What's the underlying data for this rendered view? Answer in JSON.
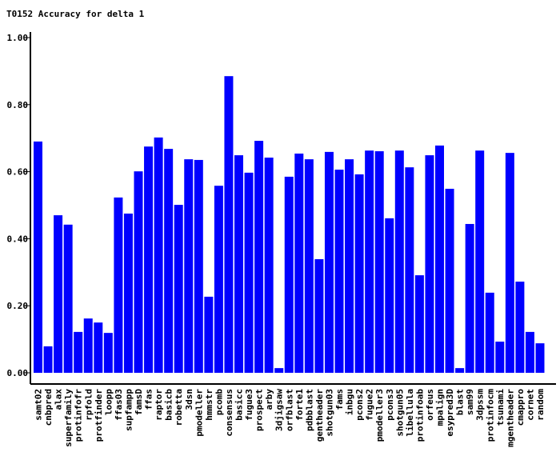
{
  "chart_data": {
    "type": "bar",
    "title": "T0152 Accuracy for delta 1",
    "categories": [
      "samt02",
      "cnbpred",
      "alax",
      "superfamily",
      "protinfofr",
      "rpfold",
      "protfinder",
      "loopp",
      "ffas03",
      "supfampp",
      "famsD",
      "ffas",
      "raptor",
      "basicb",
      "robetta",
      "3dsn",
      "pmodeller",
      "hmmstr",
      "pcomb",
      "consensus",
      "basicc",
      "fugue3",
      "prospect",
      "arby",
      "3djigsaw",
      "orfblast",
      "forte1",
      "pdbblast",
      "gentheader",
      "shotgun03",
      "fams",
      "inbgu",
      "pcons2",
      "fugue2",
      "pmodeller3",
      "pcons3",
      "shotgun05",
      "libellula",
      "protinfoab",
      "orfeus",
      "mpalign",
      "esypred3D",
      "blast",
      "sam99",
      "3dpssm",
      "protinfocm",
      "tsunami",
      "mgentheader",
      "cmappro",
      "cornet",
      "random"
    ],
    "values": [
      0.69,
      0.079,
      0.47,
      0.442,
      0.122,
      0.162,
      0.15,
      0.119,
      0.523,
      0.475,
      0.601,
      0.675,
      0.702,
      0.668,
      0.501,
      0.637,
      0.635,
      0.227,
      0.558,
      0.885,
      0.649,
      0.597,
      0.692,
      0.642,
      0.014,
      0.585,
      0.654,
      0.637,
      0.339,
      0.659,
      0.606,
      0.637,
      0.592,
      0.663,
      0.661,
      0.461,
      0.663,
      0.613,
      0.291,
      0.649,
      0.678,
      0.549,
      0.014,
      0.444,
      0.663,
      0.239,
      0.093,
      0.656,
      0.272,
      0.122,
      0.088
    ],
    "color": "#0000ff",
    "ylim": [
      0,
      1
    ],
    "yticks": [
      {
        "value": 0,
        "label": "0.00"
      },
      {
        "value": 0.2,
        "label": "0.20"
      },
      {
        "value": 0.4,
        "label": "0.40"
      },
      {
        "value": 0.6,
        "label": "0.60"
      },
      {
        "value": 0.8,
        "label": "0.80"
      },
      {
        "value": 1,
        "label": "1.00"
      }
    ]
  }
}
